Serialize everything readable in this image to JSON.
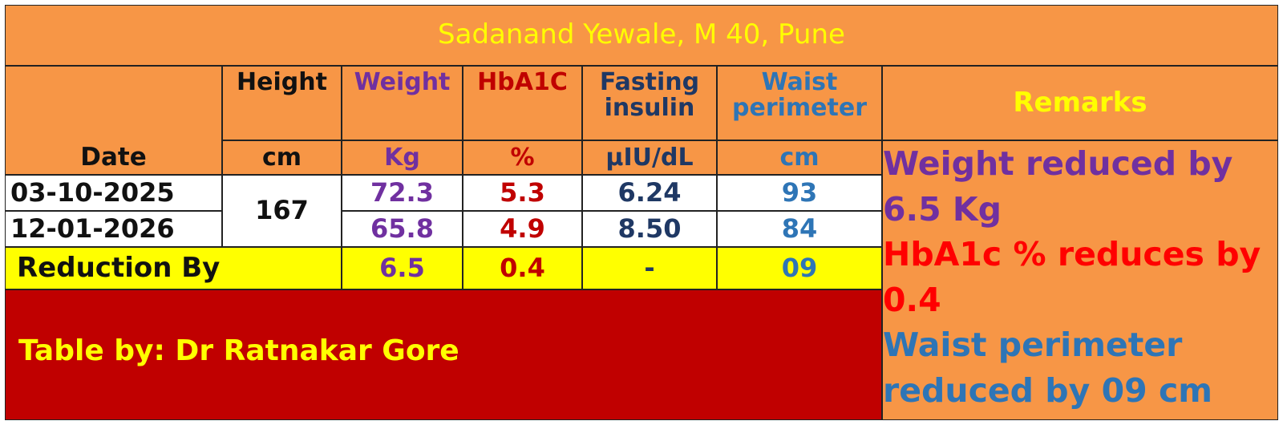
{
  "title": "Sadanand Yewale, M 40, Pune",
  "table": {
    "header": [
      "Height",
      "Weight",
      "HbA1C",
      "Fasting insulin",
      "Waist perimeter"
    ],
    "units": [
      "Date",
      "cm",
      "Kg",
      "%",
      "µIU/dL",
      "cm"
    ],
    "height": "167",
    "rows": [
      [
        "03-10-2025",
        "72.3",
        "5.3",
        "6.24",
        "93"
      ],
      [
        "12-01-2026",
        "65.8",
        "4.9",
        "8.50",
        "84"
      ]
    ],
    "reduction": {
      "label": "Reduction By",
      "values": [
        "6.5",
        "0.4",
        "-",
        "09"
      ]
    }
  },
  "remarks": {
    "title": "Remarks",
    "lines": [
      "Weight reduced by 6.5 Kg",
      "HbA1c % reduces by 0.4",
      "Waist perimeter reduced by 09 cm"
    ]
  },
  "footer": "Table by: Dr Ratnakar Gore"
}
